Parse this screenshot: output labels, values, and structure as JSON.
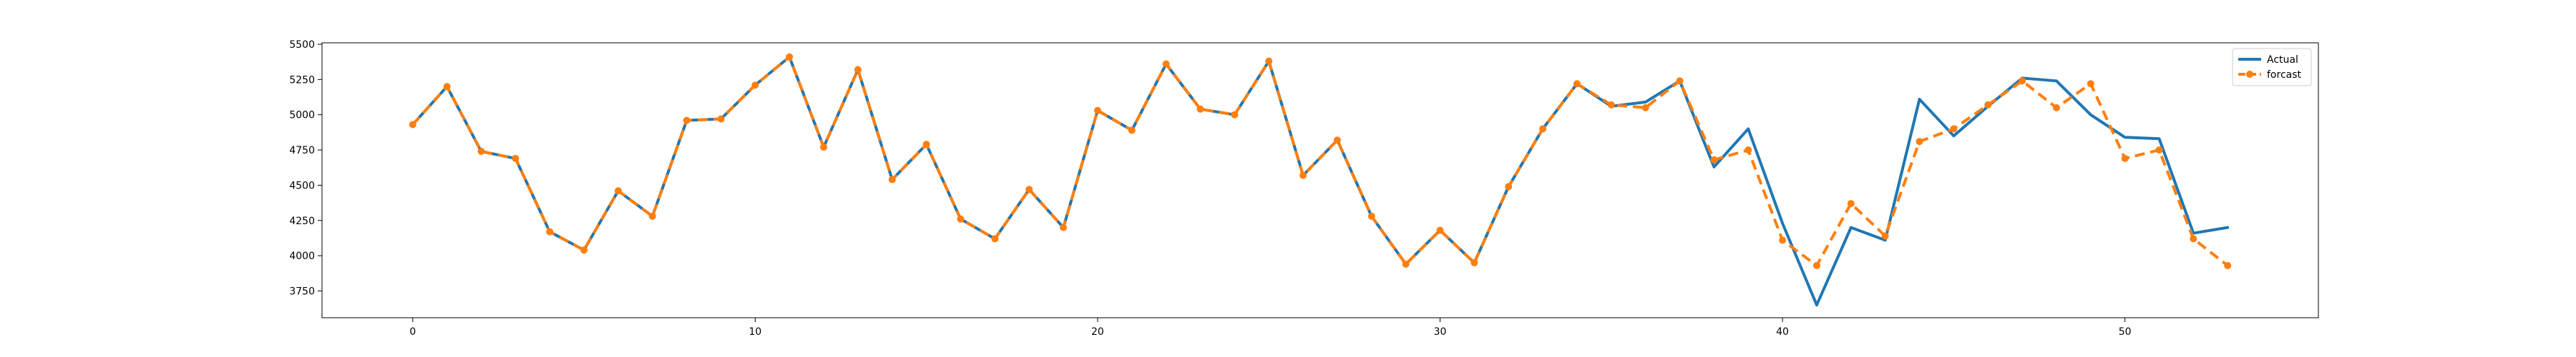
{
  "chart_data": {
    "type": "line",
    "title": "",
    "xlabel": "",
    "ylabel": "",
    "xlim": [
      -2.65,
      55.65
    ],
    "ylim": [
      3560,
      5510
    ],
    "xticks": [
      0,
      10,
      20,
      30,
      40,
      50
    ],
    "yticks": [
      3750,
      4000,
      4250,
      4500,
      4750,
      5000,
      5250,
      5500
    ],
    "grid": false,
    "legend_position": "top-right",
    "x": [
      0,
      1,
      2,
      3,
      4,
      5,
      6,
      7,
      8,
      9,
      10,
      11,
      12,
      13,
      14,
      15,
      16,
      17,
      18,
      19,
      20,
      21,
      22,
      23,
      24,
      25,
      26,
      27,
      28,
      29,
      30,
      31,
      32,
      33,
      34,
      35,
      36,
      37,
      38,
      39,
      40,
      41,
      42,
      43,
      44,
      45,
      46,
      47,
      48,
      49,
      50,
      51,
      52,
      53
    ],
    "series": [
      {
        "name": "Actual",
        "color": "#1f77b4",
        "style": "solid",
        "marker": "none",
        "values": [
          4930,
          5200,
          4740,
          4690,
          4170,
          4040,
          4460,
          4280,
          4960,
          4970,
          5210,
          5410,
          4770,
          5320,
          4540,
          4790,
          4260,
          4120,
          4470,
          4200,
          5030,
          4890,
          5360,
          5040,
          5000,
          5380,
          4570,
          4820,
          4280,
          3940,
          4180,
          3950,
          4490,
          4900,
          5220,
          5060,
          5090,
          5240,
          4630,
          4900,
          4230,
          3650,
          4200,
          4110,
          5110,
          4850,
          5060,
          5260,
          5240,
          5000,
          4840,
          4830,
          4160,
          4200
        ]
      },
      {
        "name": "forcast",
        "color": "#ff7f0e",
        "style": "dashed",
        "marker": "circle",
        "values": [
          4930,
          5200,
          4740,
          4690,
          4170,
          4040,
          4460,
          4280,
          4960,
          4970,
          5210,
          5410,
          4770,
          5320,
          4540,
          4790,
          4260,
          4120,
          4470,
          4200,
          5030,
          4890,
          5360,
          5040,
          5000,
          5380,
          4570,
          4820,
          4280,
          3940,
          4180,
          3950,
          4490,
          4900,
          5220,
          5070,
          5050,
          5240,
          4680,
          4750,
          4110,
          3930,
          4370,
          4140,
          4810,
          4900,
          5070,
          5240,
          5050,
          5220,
          4690,
          4750,
          4120,
          3930
        ]
      }
    ]
  }
}
